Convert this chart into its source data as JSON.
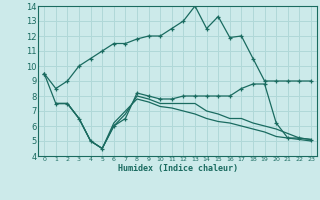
{
  "xlabel": "Humidex (Indice chaleur)",
  "bg_color": "#cceaea",
  "grid_color": "#b0d8d8",
  "line_color": "#1a6b60",
  "xlim": [
    -0.5,
    23.5
  ],
  "ylim": [
    4,
    14
  ],
  "xticks": [
    0,
    1,
    2,
    3,
    4,
    5,
    6,
    7,
    8,
    9,
    10,
    11,
    12,
    13,
    14,
    15,
    16,
    17,
    18,
    19,
    20,
    21,
    22,
    23
  ],
  "yticks": [
    4,
    5,
    6,
    7,
    8,
    9,
    10,
    11,
    12,
    13,
    14
  ],
  "series1_x": [
    0,
    1,
    2,
    3,
    4,
    5,
    6,
    7,
    8,
    9,
    10,
    11,
    12,
    13,
    14,
    15,
    16,
    17,
    18,
    19,
    20,
    21,
    22,
    23
  ],
  "series1_y": [
    9.5,
    8.5,
    9.0,
    10.0,
    10.5,
    11.0,
    11.5,
    11.5,
    11.8,
    12.0,
    12.0,
    12.5,
    13.0,
    14.0,
    12.5,
    13.3,
    11.9,
    12.0,
    10.5,
    9.0,
    9.0,
    9.0,
    9.0,
    9.0
  ],
  "series2_x": [
    0,
    1,
    2,
    3,
    4,
    5,
    6,
    7,
    8,
    9,
    10,
    11,
    12,
    13,
    14,
    15,
    16,
    17,
    18,
    19,
    20,
    21,
    22,
    23
  ],
  "series2_y": [
    9.5,
    7.5,
    7.5,
    6.5,
    5.0,
    4.5,
    6.0,
    6.5,
    8.2,
    8.0,
    7.8,
    7.8,
    8.0,
    8.0,
    8.0,
    8.0,
    8.0,
    8.5,
    8.8,
    8.8,
    6.2,
    5.2,
    5.2,
    5.1
  ],
  "series3_x": [
    1,
    2,
    3,
    4,
    5,
    6,
    7,
    8,
    9,
    10,
    11,
    12,
    13,
    14,
    15,
    16,
    17,
    18,
    19,
    20,
    21,
    22,
    23
  ],
  "series3_y": [
    7.5,
    7.5,
    6.5,
    5.0,
    4.5,
    6.0,
    6.8,
    8.0,
    7.8,
    7.5,
    7.5,
    7.5,
    7.5,
    7.0,
    6.8,
    6.5,
    6.5,
    6.2,
    6.0,
    5.8,
    5.5,
    5.2,
    5.1
  ],
  "series4_x": [
    1,
    2,
    3,
    4,
    5,
    6,
    7,
    8,
    9,
    10,
    11,
    12,
    13,
    14,
    15,
    16,
    17,
    18,
    19,
    20,
    21,
    22,
    23
  ],
  "series4_y": [
    7.5,
    7.5,
    6.5,
    5.0,
    4.5,
    6.2,
    7.0,
    7.8,
    7.6,
    7.3,
    7.2,
    7.0,
    6.8,
    6.5,
    6.3,
    6.2,
    6.0,
    5.8,
    5.6,
    5.3,
    5.2,
    5.1,
    5.0
  ]
}
